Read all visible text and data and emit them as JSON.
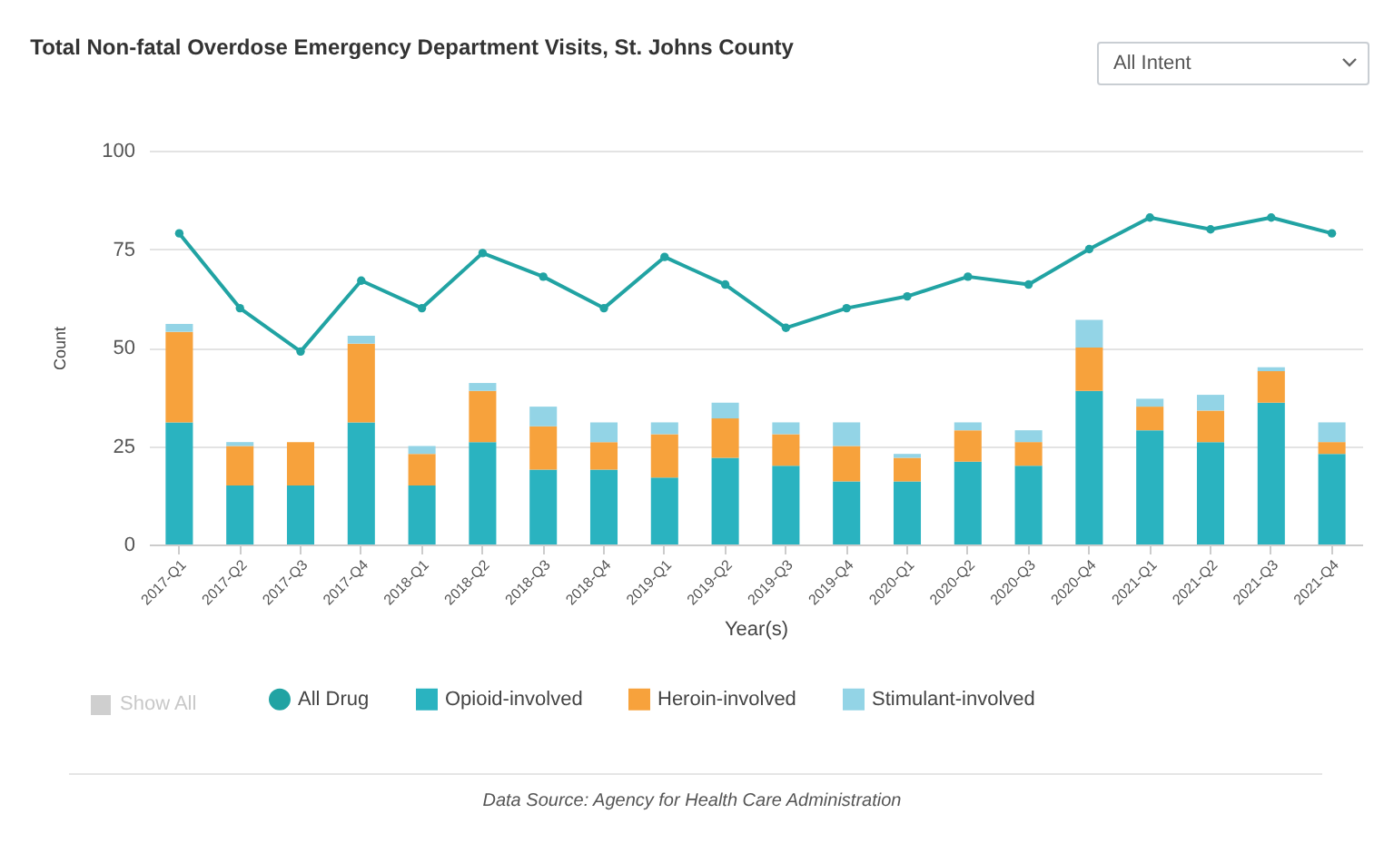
{
  "chart_data": {
    "type": "bar",
    "title": "Total Non-fatal Overdose Emergency Department Visits, St. Johns County",
    "xlabel": "Year(s)",
    "ylabel": "Count",
    "categories": [
      "2017-Q1",
      "2017-Q2",
      "2017-Q3",
      "2017-Q4",
      "2018-Q1",
      "2018-Q2",
      "2018-Q3",
      "2018-Q4",
      "2019-Q1",
      "2019-Q2",
      "2019-Q3",
      "2019-Q4",
      "2020-Q1",
      "2020-Q2",
      "2020-Q3",
      "2020-Q4",
      "2021-Q1",
      "2021-Q2",
      "2021-Q3",
      "2021-Q4"
    ],
    "series": [
      {
        "name": "All Drug",
        "type": "line",
        "color": "#21a3a3",
        "values": [
          79,
          60,
          49,
          67,
          60,
          74,
          68,
          60,
          73,
          66,
          55,
          60,
          63,
          68,
          66,
          75,
          83,
          80,
          83,
          79
        ]
      },
      {
        "name": "Opioid-involved",
        "color": "#2ab3c0",
        "values": [
          31,
          15,
          15,
          31,
          15,
          26,
          19,
          19,
          17,
          22,
          20,
          16,
          16,
          21,
          20,
          39,
          29,
          26,
          36,
          23
        ]
      },
      {
        "name": "Heroin-involved",
        "color": "#f7a23c",
        "values": [
          23,
          10,
          11,
          20,
          8,
          13,
          11,
          7,
          11,
          10,
          8,
          9,
          6,
          8,
          6,
          11,
          6,
          8,
          8,
          3
        ]
      },
      {
        "name": "Stimulant-involved",
        "color": "#93d4e6",
        "values": [
          2,
          1,
          0,
          2,
          2,
          2,
          5,
          5,
          3,
          4,
          3,
          6,
          1,
          2,
          3,
          7,
          2,
          4,
          1,
          5
        ]
      }
    ],
    "stacked": true,
    "ylim": [
      0,
      100
    ],
    "yticks": [
      0,
      25,
      50,
      75,
      100
    ],
    "grid": "y",
    "legend": "bottom",
    "marker": "circle",
    "annotations": [
      "All Intent",
      "Show All",
      "Data Source: Agency for Health Care Administration"
    ]
  }
}
